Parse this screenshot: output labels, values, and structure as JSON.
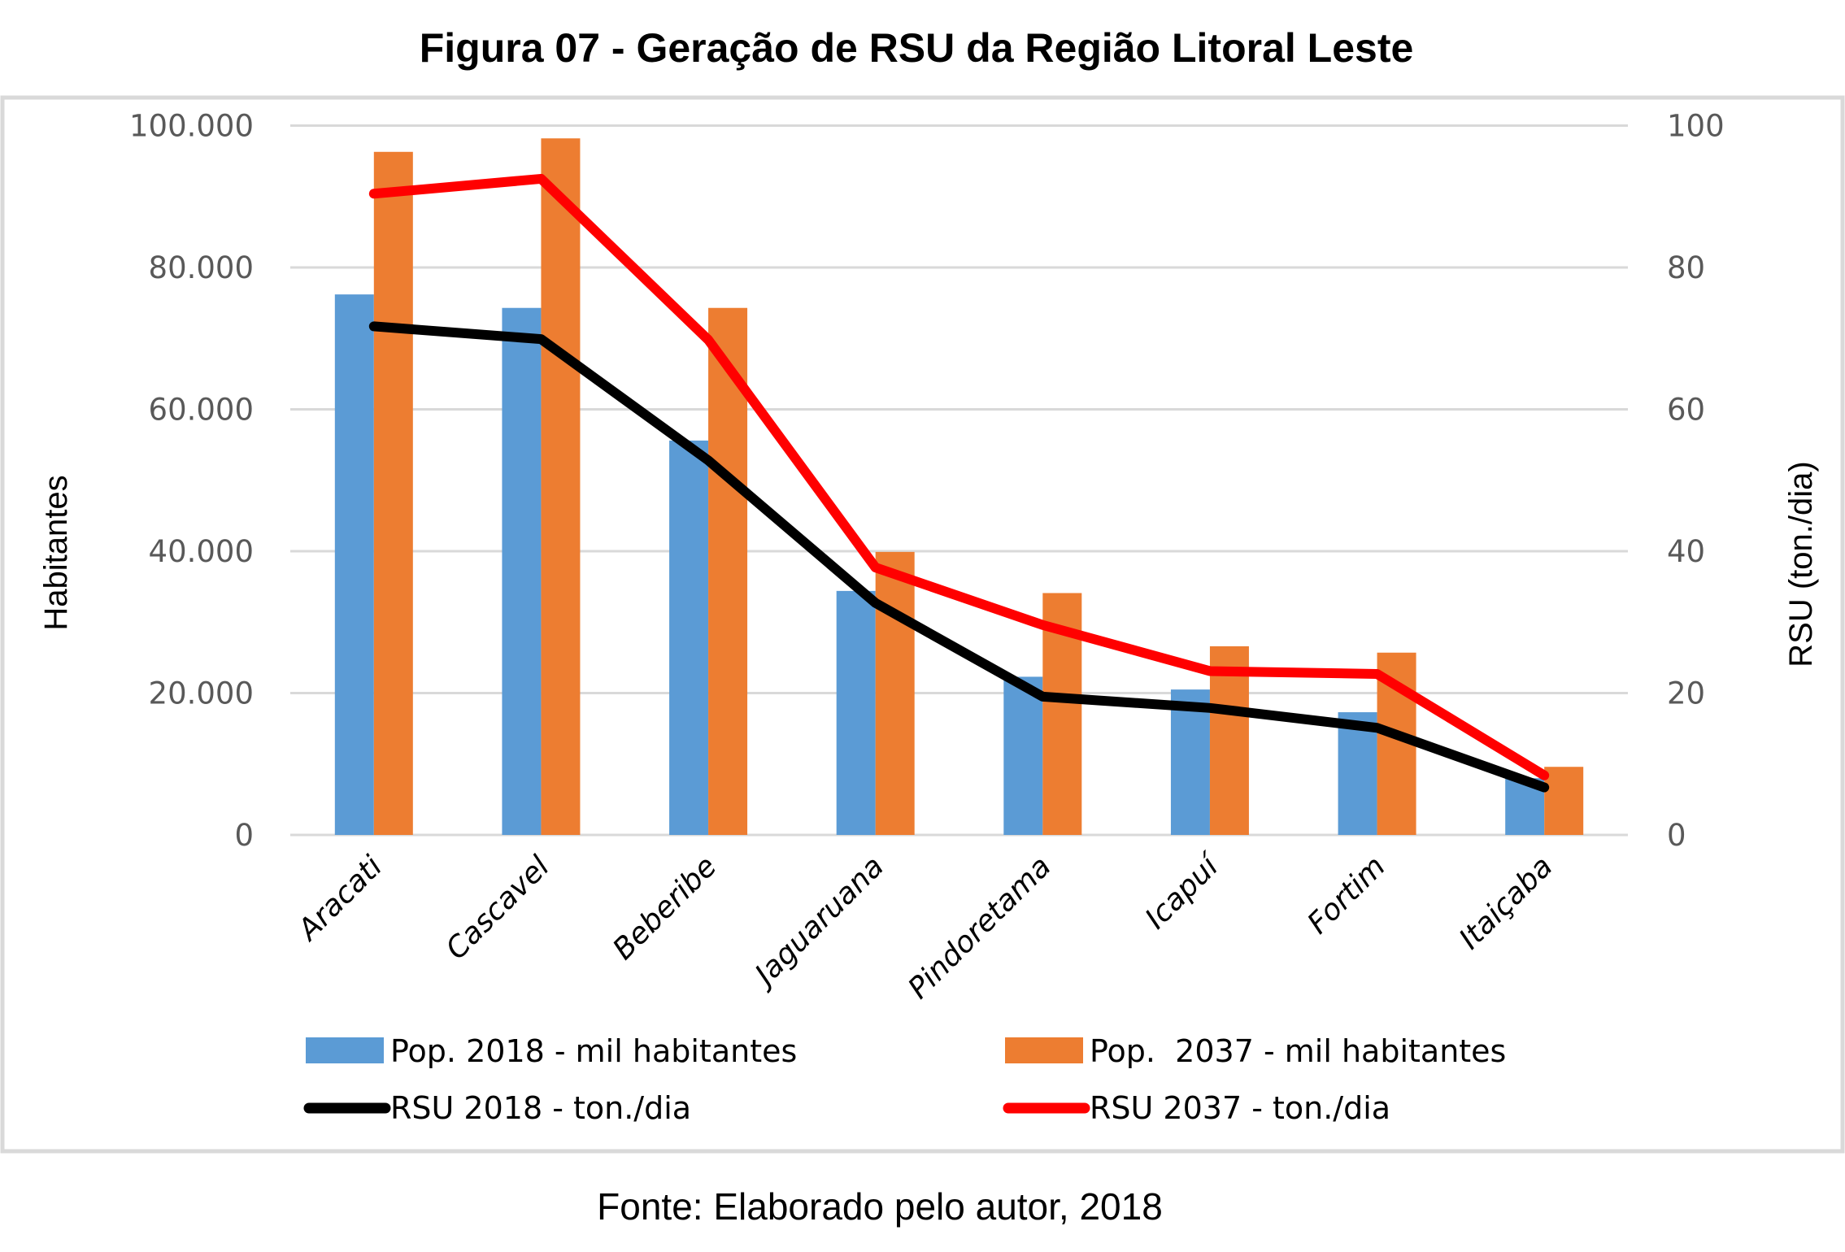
{
  "figure": {
    "title": "Figura 07 - Geração de RSU da Região Litoral Leste",
    "source": "Fonte: Elaborado pelo autor, 2018"
  },
  "chart_data": {
    "type": "bar",
    "title": "Figura 07 - Geração de RSU da Região Litoral Leste",
    "categories": [
      "Aracati",
      "Cascavel",
      "Beberibe",
      "Jaguaruana",
      "Pindoretama",
      "Icapuí",
      "Fortim",
      "Itaiçaba"
    ],
    "ylabel": "Habitantes",
    "y2label": "RSU (ton./dia)",
    "ylim": [
      0,
      100000
    ],
    "y2lim": [
      0,
      100
    ],
    "yticks": [
      "0",
      "20.000",
      "40.000",
      "60.000",
      "80.000",
      "100.000"
    ],
    "ytick_values": [
      0,
      20000,
      40000,
      60000,
      80000,
      100000
    ],
    "y2ticks": [
      "0",
      "20",
      "40",
      "60",
      "80",
      "100"
    ],
    "y2tick_values": [
      0,
      20,
      40,
      60,
      80,
      100
    ],
    "grid": true,
    "legend_position": "bottom",
    "series": [
      {
        "name": "Pop. 2018 - mil habitantes",
        "kind": "bar",
        "axis": "left",
        "color": "#5b9bd5",
        "values": [
          76200,
          74300,
          55600,
          34400,
          22300,
          20500,
          17300,
          8000
        ]
      },
      {
        "name": "Pop.  2037 - mil habitantes",
        "kind": "bar",
        "axis": "left",
        "color": "#ed7d31",
        "values": [
          96300,
          98200,
          74300,
          39900,
          34100,
          26600,
          25700,
          9600
        ]
      },
      {
        "name": "RSU 2018 - ton./dia",
        "kind": "line",
        "axis": "right",
        "color": "#000000",
        "values": [
          71.7,
          69.9,
          52.8,
          32.7,
          19.5,
          17.9,
          15.1,
          6.7
        ]
      },
      {
        "name": "RSU 2037 - ton./dia",
        "kind": "line",
        "axis": "right",
        "color": "#ff0000",
        "values": [
          90.4,
          92.5,
          69.8,
          37.7,
          29.6,
          23.1,
          22.7,
          8.4
        ]
      }
    ]
  }
}
